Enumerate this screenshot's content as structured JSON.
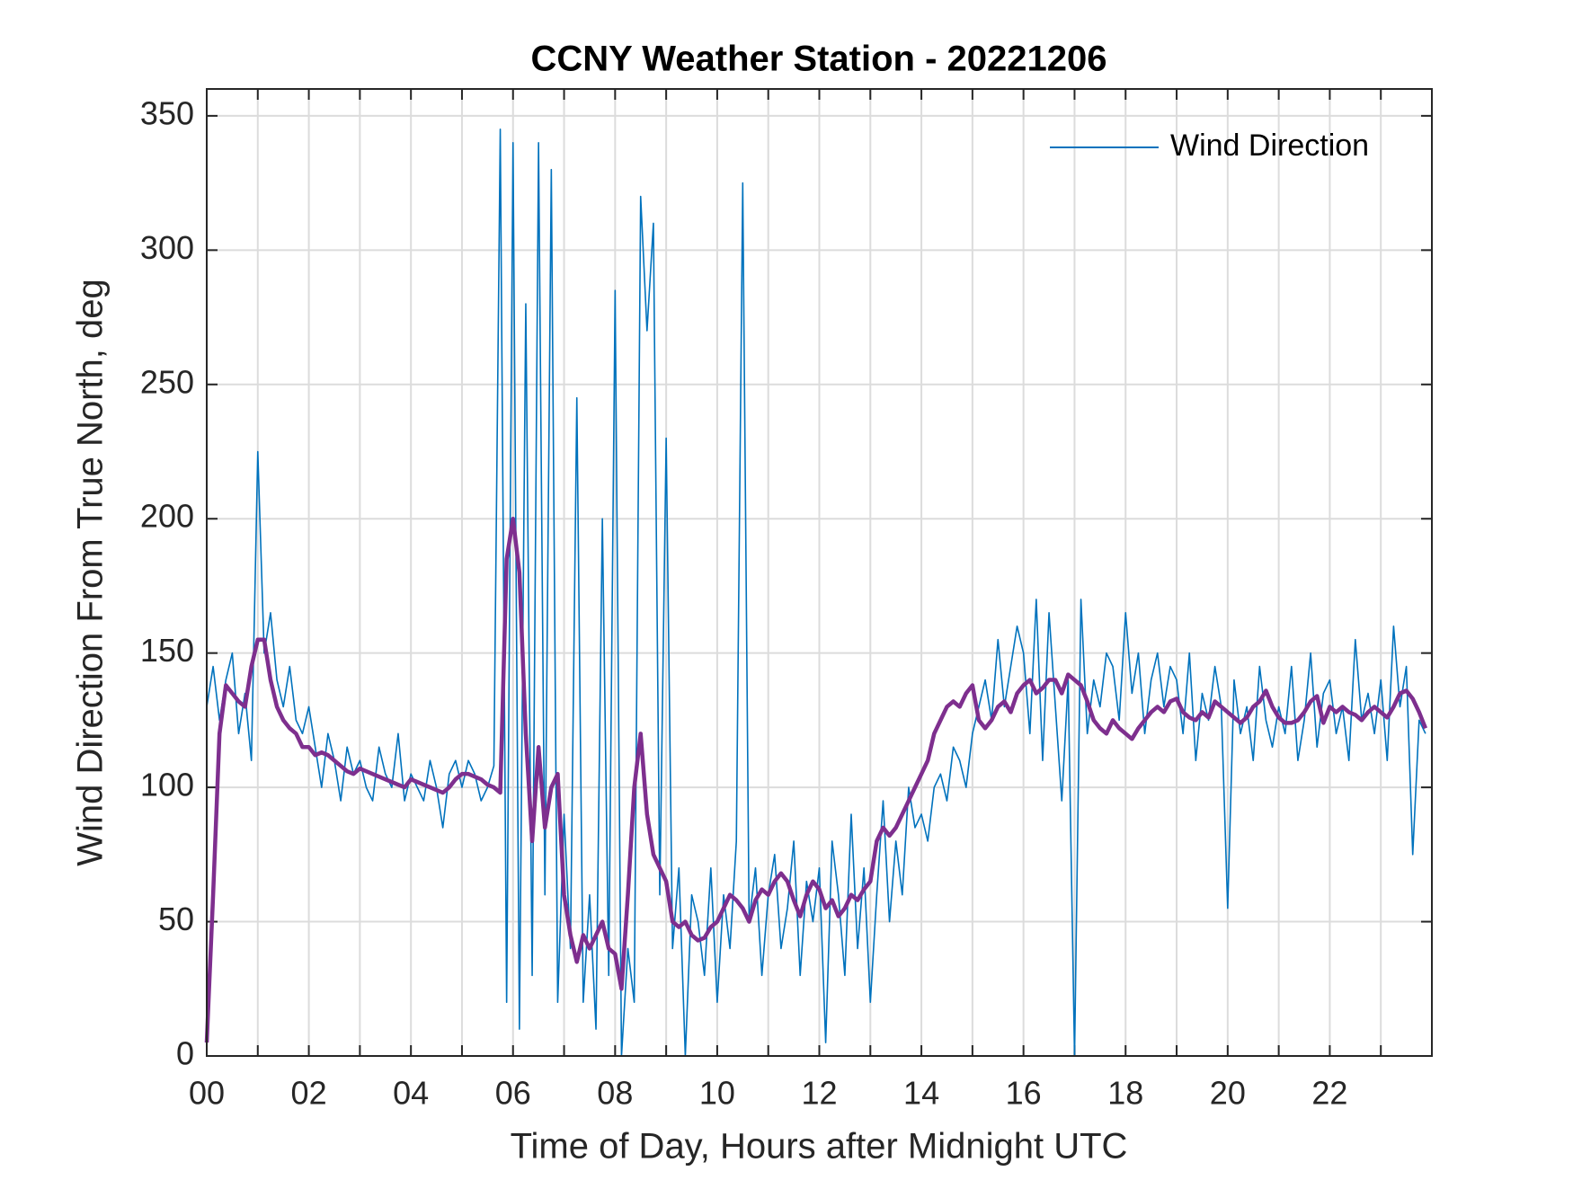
{
  "chart_data": {
    "type": "line",
    "title": "CCNY Weather Station - 20221206",
    "xlabel": "Time of Day, Hours after Midnight UTC",
    "ylabel": "Wind Direction From True North, deg",
    "xlim": [
      0,
      24
    ],
    "ylim": [
      0,
      360
    ],
    "xticks": [
      {
        "value": 0,
        "label": "00"
      },
      {
        "value": 2,
        "label": "02"
      },
      {
        "value": 4,
        "label": "04"
      },
      {
        "value": 6,
        "label": "06"
      },
      {
        "value": 8,
        "label": "08"
      },
      {
        "value": 10,
        "label": "10"
      },
      {
        "value": 12,
        "label": "12"
      },
      {
        "value": 14,
        "label": "14"
      },
      {
        "value": 16,
        "label": "16"
      },
      {
        "value": 18,
        "label": "18"
      },
      {
        "value": 20,
        "label": "20"
      },
      {
        "value": 22,
        "label": "22"
      }
    ],
    "xminorticks": [
      1,
      3,
      5,
      7,
      9,
      11,
      13,
      15,
      17,
      19,
      21,
      23
    ],
    "yticks": [
      0,
      50,
      100,
      150,
      200,
      250,
      300,
      350
    ],
    "grid": true,
    "legend": "upper right",
    "x": [
      0,
      0.125,
      0.25,
      0.375,
      0.5,
      0.625,
      0.75,
      0.875,
      1,
      1.125,
      1.25,
      1.375,
      1.5,
      1.625,
      1.75,
      1.875,
      2,
      2.125,
      2.25,
      2.375,
      2.5,
      2.625,
      2.75,
      2.875,
      3,
      3.125,
      3.25,
      3.375,
      3.5,
      3.625,
      3.75,
      3.875,
      4,
      4.125,
      4.25,
      4.375,
      4.5,
      4.625,
      4.75,
      4.875,
      5,
      5.125,
      5.25,
      5.375,
      5.5,
      5.625,
      5.75,
      5.875,
      6,
      6.125,
      6.25,
      6.375,
      6.5,
      6.625,
      6.75,
      6.875,
      7,
      7.125,
      7.25,
      7.375,
      7.5,
      7.625,
      7.75,
      7.875,
      8,
      8.125,
      8.25,
      8.375,
      8.5,
      8.625,
      8.75,
      8.875,
      9,
      9.125,
      9.25,
      9.375,
      9.5,
      9.625,
      9.75,
      9.875,
      10,
      10.125,
      10.25,
      10.375,
      10.5,
      10.625,
      10.75,
      10.875,
      11,
      11.125,
      11.25,
      11.375,
      11.5,
      11.625,
      11.75,
      11.875,
      12,
      12.125,
      12.25,
      12.375,
      12.5,
      12.625,
      12.75,
      12.875,
      13,
      13.125,
      13.25,
      13.375,
      13.5,
      13.625,
      13.75,
      13.875,
      14,
      14.125,
      14.25,
      14.375,
      14.5,
      14.625,
      14.75,
      14.875,
      15,
      15.125,
      15.25,
      15.375,
      15.5,
      15.625,
      15.75,
      15.875,
      16,
      16.125,
      16.25,
      16.375,
      16.5,
      16.625,
      16.75,
      16.875,
      17,
      17.125,
      17.25,
      17.375,
      17.5,
      17.625,
      17.75,
      17.875,
      18,
      18.125,
      18.25,
      18.375,
      18.5,
      18.625,
      18.75,
      18.875,
      19,
      19.125,
      19.25,
      19.375,
      19.5,
      19.625,
      19.75,
      19.875,
      20,
      20.125,
      20.25,
      20.375,
      20.5,
      20.625,
      20.75,
      20.875,
      21,
      21.125,
      21.25,
      21.375,
      21.5,
      21.625,
      21.75,
      21.875,
      22,
      22.125,
      22.25,
      22.375,
      22.5,
      22.625,
      22.75,
      22.875,
      23,
      23.125,
      23.25,
      23.375,
      23.5,
      23.625,
      23.75,
      23.875
    ],
    "series": [
      {
        "name": "Wind Direction",
        "color": "#0072bd",
        "values": [
          130,
          145,
          125,
          140,
          150,
          120,
          135,
          110,
          225,
          150,
          165,
          140,
          130,
          145,
          125,
          120,
          130,
          115,
          100,
          120,
          110,
          95,
          115,
          105,
          110,
          100,
          95,
          115,
          105,
          100,
          120,
          95,
          105,
          100,
          95,
          110,
          100,
          85,
          105,
          110,
          100,
          110,
          105,
          95,
          100,
          108,
          345,
          20,
          340,
          10,
          280,
          30,
          340,
          60,
          330,
          20,
          90,
          40,
          245,
          20,
          60,
          10,
          200,
          30,
          285,
          0,
          40,
          20,
          320,
          270,
          310,
          60,
          230,
          40,
          70,
          0,
          60,
          50,
          30,
          70,
          20,
          60,
          40,
          80,
          325,
          50,
          70,
          30,
          60,
          75,
          40,
          55,
          80,
          30,
          65,
          50,
          70,
          5,
          80,
          60,
          30,
          90,
          40,
          70,
          20,
          60,
          95,
          50,
          80,
          60,
          100,
          85,
          90,
          80,
          100,
          105,
          95,
          115,
          110,
          100,
          120,
          130,
          140,
          125,
          155,
          130,
          145,
          160,
          150,
          120,
          170,
          110,
          165,
          130,
          95,
          140,
          0,
          170,
          120,
          140,
          130,
          150,
          145,
          125,
          165,
          135,
          150,
          120,
          140,
          150,
          130,
          145,
          140,
          120,
          150,
          110,
          135,
          125,
          145,
          130,
          55,
          140,
          120,
          130,
          110,
          145,
          125,
          115,
          130,
          120,
          145,
          110,
          125,
          150,
          115,
          135,
          140,
          120,
          130,
          110,
          155,
          125,
          135,
          120,
          140,
          110,
          160,
          130,
          145,
          75,
          125,
          120
        ]
      },
      {
        "color": "#7e2f8e",
        "values": [
          5,
          60,
          120,
          138,
          135,
          132,
          130,
          145,
          155,
          155,
          140,
          130,
          125,
          122,
          120,
          115,
          115,
          112,
          113,
          112,
          110,
          108,
          106,
          105,
          107,
          106,
          105,
          104,
          103,
          102,
          101,
          100,
          103,
          102,
          101,
          100,
          99,
          98,
          100,
          103,
          105,
          105,
          104,
          103,
          101,
          100,
          98,
          185,
          200,
          180,
          120,
          80,
          115,
          85,
          100,
          105,
          60,
          45,
          35,
          45,
          40,
          45,
          50,
          40,
          38,
          25,
          60,
          100,
          120,
          90,
          75,
          70,
          65,
          50,
          48,
          50,
          45,
          43,
          44,
          48,
          50,
          55,
          60,
          58,
          55,
          50,
          58,
          62,
          60,
          65,
          68,
          65,
          58,
          52,
          60,
          65,
          62,
          55,
          58,
          52,
          55,
          60,
          58,
          62,
          65,
          80,
          85,
          82,
          85,
          90,
          95,
          100,
          105,
          110,
          120,
          125,
          130,
          132,
          130,
          135,
          138,
          125,
          122,
          125,
          130,
          132,
          128,
          135,
          138,
          140,
          135,
          137,
          140,
          140,
          135,
          142,
          140,
          138,
          132,
          125,
          122,
          120,
          125,
          122,
          120,
          118,
          122,
          125,
          128,
          130,
          128,
          132,
          133,
          128,
          126,
          125,
          128,
          126,
          132,
          130,
          128,
          126,
          124,
          126,
          130,
          132,
          136,
          130,
          126,
          124,
          124,
          125,
          128,
          132,
          134,
          124,
          130,
          128,
          130,
          128,
          127,
          125,
          128,
          130,
          128,
          126,
          130,
          135,
          136,
          133,
          128,
          122
        ]
      }
    ]
  }
}
